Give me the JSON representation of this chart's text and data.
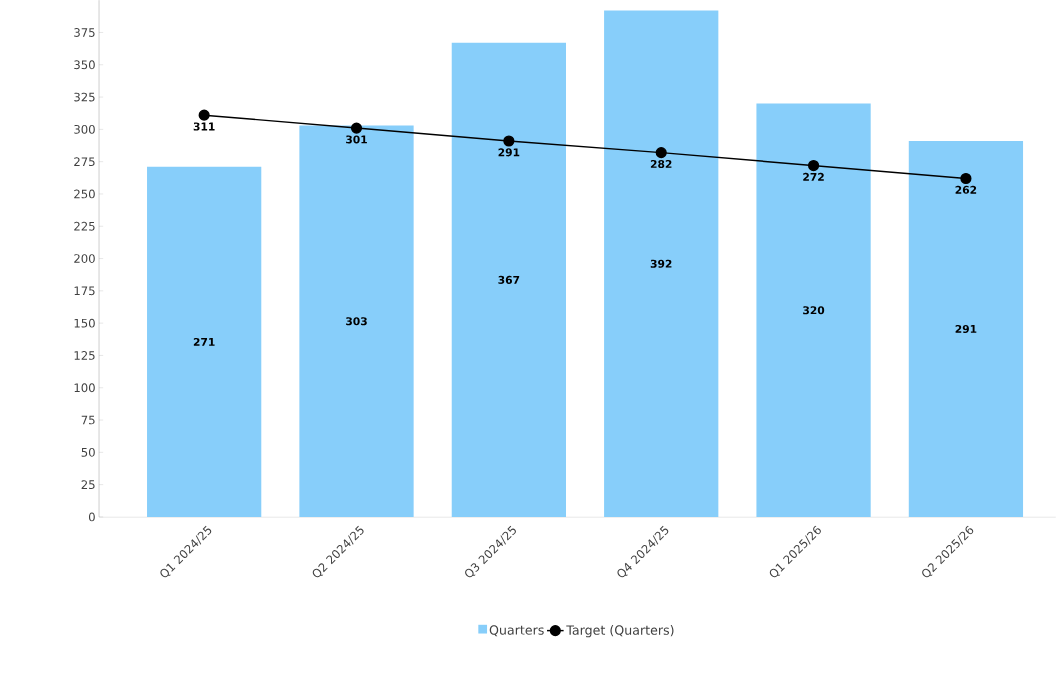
{
  "chart_data": {
    "type": "bar",
    "categories": [
      "Q1 2024/25",
      "Q2 2024/25",
      "Q3 2024/25",
      "Q4 2024/25",
      "Q1 2025/26",
      "Q2 2025/26"
    ],
    "series": [
      {
        "name": "Quarters",
        "color": "#87cefa",
        "values": [
          271,
          303,
          367,
          392,
          320,
          291
        ]
      },
      {
        "name": "Target (Quarters)",
        "type": "line",
        "color": "#000000",
        "values": [
          311,
          301,
          291,
          282,
          272,
          262
        ]
      }
    ],
    "ylim": [
      0,
      400
    ],
    "yticks": [
      0,
      25,
      50,
      75,
      100,
      125,
      150,
      175,
      200,
      225,
      250,
      275,
      300,
      325,
      350,
      375
    ],
    "data_labels": true,
    "marker": "circle",
    "legend": "bottom"
  }
}
